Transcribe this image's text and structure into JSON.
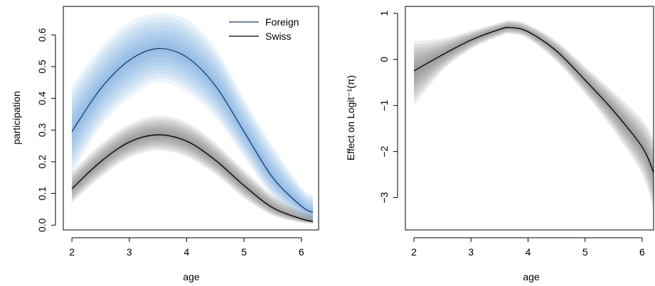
{
  "chart_data": [
    {
      "type": "line",
      "title": "",
      "xlabel": "age",
      "ylabel": "participation",
      "xlim": [
        1.85,
        6.3
      ],
      "ylim": [
        -0.015,
        0.69
      ],
      "xticks": [
        2,
        3,
        4,
        5,
        6
      ],
      "xtick_labels": [
        "2",
        "3",
        "4",
        "5",
        "6"
      ],
      "yticks": [
        0.0,
        0.1,
        0.2,
        0.3,
        0.4,
        0.5,
        0.6
      ],
      "ytick_labels": [
        "0.0",
        "0.1",
        "0.2",
        "0.3",
        "0.4",
        "0.5",
        "0.6"
      ],
      "grid": false,
      "legend_position": "top-right",
      "x": [
        2.0,
        2.5,
        3.0,
        3.5,
        4.0,
        4.5,
        5.0,
        5.5,
        6.0,
        6.2
      ],
      "series": [
        {
          "name": "Foreign",
          "color": "#1f3a68",
          "band_color": "#4a8fd6",
          "values": [
            0.295,
            0.43,
            0.52,
            0.557,
            0.53,
            0.44,
            0.295,
            0.15,
            0.06,
            0.04
          ],
          "lower": [
            0.16,
            0.31,
            0.4,
            0.45,
            0.42,
            0.34,
            0.215,
            0.09,
            0.025,
            0.01
          ],
          "upper": [
            0.44,
            0.56,
            0.64,
            0.668,
            0.65,
            0.56,
            0.4,
            0.25,
            0.12,
            0.095
          ]
        },
        {
          "name": "Swiss",
          "color": "#000000",
          "band_color": "#555555",
          "values": [
            0.115,
            0.2,
            0.262,
            0.285,
            0.265,
            0.205,
            0.125,
            0.055,
            0.02,
            0.012
          ],
          "lower": [
            0.07,
            0.15,
            0.212,
            0.235,
            0.215,
            0.16,
            0.085,
            0.03,
            0.008,
            0.004
          ],
          "upper": [
            0.17,
            0.255,
            0.318,
            0.345,
            0.325,
            0.26,
            0.175,
            0.095,
            0.045,
            0.035
          ]
        }
      ]
    },
    {
      "type": "line",
      "title": "",
      "xlabel": "age",
      "ylabel": "Effect on Logit⁻¹(π)",
      "xlim": [
        1.85,
        6.2
      ],
      "ylim": [
        -3.7,
        1.15
      ],
      "xticks": [
        2,
        3,
        4,
        5,
        6
      ],
      "xtick_labels": [
        "2",
        "3",
        "4",
        "5",
        "6"
      ],
      "yticks": [
        -3,
        -2,
        -1,
        0,
        1
      ],
      "ytick_labels": [
        "−3",
        "−2",
        "−1",
        "0",
        "1"
      ],
      "grid": false,
      "x": [
        2.0,
        2.5,
        3.0,
        3.5,
        3.7,
        4.0,
        4.5,
        5.0,
        5.5,
        6.0,
        6.2
      ],
      "series": [
        {
          "color": "#000000",
          "band_color": "#555555",
          "values": [
            -0.25,
            0.1,
            0.42,
            0.65,
            0.69,
            0.6,
            0.18,
            -0.45,
            -1.12,
            -1.9,
            -2.45
          ],
          "lower": [
            -1.0,
            -0.25,
            0.22,
            0.5,
            0.55,
            0.45,
            -0.05,
            -0.75,
            -1.55,
            -2.5,
            -3.3
          ],
          "upper": [
            0.4,
            0.45,
            0.62,
            0.8,
            0.85,
            0.76,
            0.4,
            -0.15,
            -0.7,
            -1.3,
            -1.7
          ]
        }
      ]
    }
  ]
}
